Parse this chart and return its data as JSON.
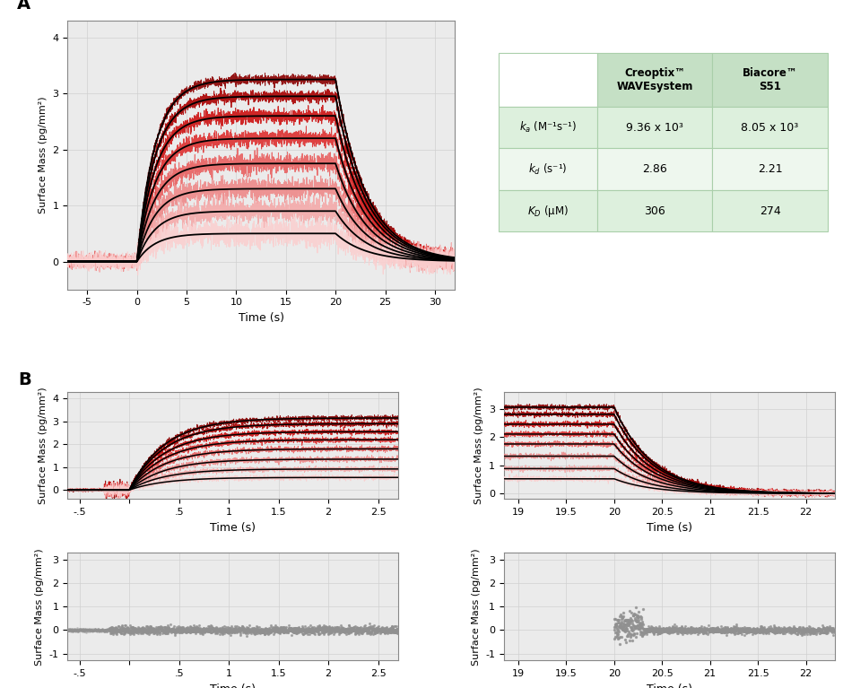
{
  "panel_A_label": "A",
  "panel_B_label": "B",
  "background_color": "#ebebeb",
  "grid_color": "#d0d0d0",
  "n_traces": 8,
  "red_shades": [
    "#8B0000",
    "#AA0000",
    "#CC1010",
    "#DD3030",
    "#E86060",
    "#EE8888",
    "#F4AAAA",
    "#FAD0D0"
  ],
  "gray_color": "#909090",
  "black_color": "#000000",
  "table_header_bg": "#c5e0c5",
  "table_row_bg_odd": "#ddf0dd",
  "table_row_bg_even": "#eef7ee",
  "table_border_color": "#aacfaa",
  "ylabel": "Surface Mass (pg/mm²)",
  "xlabel": "Time (s)",
  "panel_A": {
    "xlim": [
      -7,
      32
    ],
    "ylim": [
      -0.5,
      4.3
    ],
    "xticks": [
      -5,
      0,
      5,
      10,
      15,
      20,
      25,
      30
    ],
    "yticks": [
      0,
      1,
      2,
      3,
      4
    ],
    "plateau_values": [
      3.25,
      2.95,
      2.6,
      2.2,
      1.75,
      1.3,
      0.9,
      0.5
    ],
    "k_assoc": 0.55,
    "k_dissoc": 0.32
  },
  "panel_B_assoc": {
    "xlim": [
      -0.62,
      2.7
    ],
    "ylim": [
      -0.4,
      4.3
    ],
    "xticks": [
      -0.5,
      0,
      0.5,
      1.0,
      1.5,
      2.0,
      2.5
    ],
    "xticklabels": [
      "-.5",
      "",
      ".5",
      "1",
      "1.5",
      "2",
      "2.5"
    ],
    "yticks": [
      0,
      1,
      2,
      3,
      4
    ],
    "plateau_values": [
      3.15,
      2.9,
      2.55,
      2.2,
      1.8,
      1.35,
      0.92,
      0.55
    ],
    "k_assoc": 2.8
  },
  "panel_B_dissoc": {
    "xlim": [
      18.85,
      22.3
    ],
    "ylim": [
      -0.2,
      3.6
    ],
    "xticks": [
      19,
      19.5,
      20,
      20.5,
      21,
      21.5,
      22
    ],
    "yticks": [
      0,
      1,
      2,
      3
    ],
    "start_values": [
      3.05,
      2.8,
      2.45,
      2.1,
      1.75,
      1.32,
      0.88,
      0.52
    ],
    "k_dissoc": 2.5
  },
  "panel_B_resid_assoc": {
    "xlim": [
      -0.62,
      2.7
    ],
    "ylim": [
      -1.3,
      3.3
    ],
    "xticks": [
      -0.5,
      0,
      0.5,
      1.0,
      1.5,
      2.0,
      2.5
    ],
    "xticklabels": [
      "-.5",
      "",
      ".5",
      "1",
      "1.5",
      "2",
      "2.5"
    ],
    "yticks": [
      -1,
      0,
      1,
      2,
      3
    ]
  },
  "panel_B_resid_dissoc": {
    "xlim": [
      18.85,
      22.3
    ],
    "ylim": [
      -1.3,
      3.3
    ],
    "xticks": [
      19,
      19.5,
      20,
      20.5,
      21,
      21.5,
      22
    ],
    "yticks": [
      -1,
      0,
      1,
      2,
      3
    ]
  },
  "table": {
    "col_headers": [
      "Creoptix™\nWAVEsystem",
      "Biacore™\nS51"
    ],
    "row_labels": [
      "ka_row",
      "kd_row",
      "KD_row"
    ],
    "values": [
      [
        "9.36 x 10³",
        "8.05 x 10³"
      ],
      [
        "2.86",
        "2.21"
      ],
      [
        "306",
        "274"
      ]
    ]
  }
}
